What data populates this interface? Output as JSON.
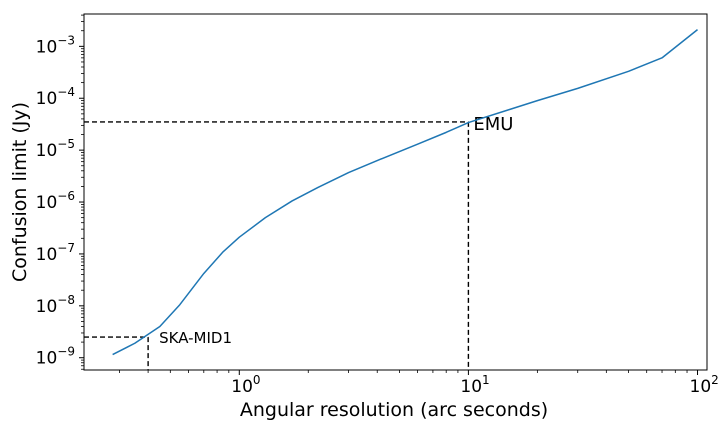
{
  "chart_data": {
    "type": "line",
    "xlabel": "Angular resolution (arc seconds)",
    "ylabel": "Confusion limit (Jy)",
    "xscale": "log",
    "yscale": "log",
    "xlim": [
      0.21,
      110
    ],
    "ylim": [
      5.8e-10,
      0.0042
    ],
    "grid": false,
    "x_ticks": [
      {
        "value": 1,
        "base": "10",
        "exp": "0"
      },
      {
        "value": 10,
        "base": "10",
        "exp": "1"
      },
      {
        "value": 100,
        "base": "10",
        "exp": "2"
      }
    ],
    "y_ticks": [
      {
        "value": 1e-09,
        "base": "10",
        "exp": "−9"
      },
      {
        "value": 1e-08,
        "base": "10",
        "exp": "−8"
      },
      {
        "value": 1e-07,
        "base": "10",
        "exp": "−7"
      },
      {
        "value": 1e-06,
        "base": "10",
        "exp": "−6"
      },
      {
        "value": 1e-05,
        "base": "10",
        "exp": "−5"
      },
      {
        "value": 0.0001,
        "base": "10",
        "exp": "−4"
      },
      {
        "value": 0.001,
        "base": "10",
        "exp": "−3"
      }
    ],
    "series": [
      {
        "color": "#1f77b4",
        "x": [
          0.28,
          0.35,
          0.45,
          0.55,
          0.7,
          0.85,
          1.0,
          1.3,
          1.7,
          2.2,
          3.0,
          4.0,
          6.0,
          8.0,
          10.0,
          15.0,
          20.0,
          30.0,
          50.0,
          70.0,
          100.0
        ],
        "y": [
          1.15e-09,
          1.9e-09,
          4e-09,
          1.05e-08,
          4.2e-08,
          1.1e-07,
          2.1e-07,
          5e-07,
          1.05e-06,
          1.9e-06,
          3.7e-06,
          6.3e-06,
          1.3e-05,
          2.2e-05,
          3.4e-05,
          6e-05,
          9e-05,
          0.000155,
          0.00033,
          0.0006,
          0.0021
        ]
      }
    ],
    "annotations": [
      {
        "label": "EMU",
        "x": 10.0,
        "y": 3.5e-05,
        "size": "large"
      },
      {
        "label": "SKA-MID1",
        "x": 0.4,
        "y": 2.5e-09,
        "size": "small"
      }
    ]
  }
}
